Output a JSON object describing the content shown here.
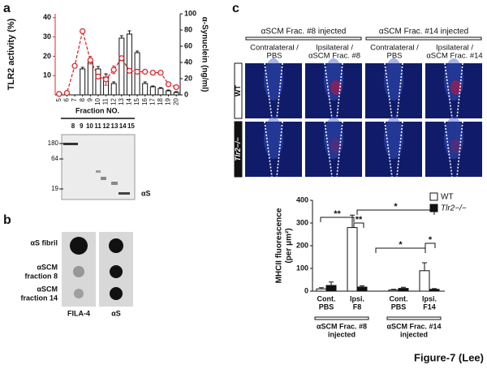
{
  "figure_label": "Figure-7 (Lee)",
  "panel_labels": [
    "a",
    "b",
    "c"
  ],
  "chart_data": [
    {
      "type": "bar",
      "y_label": "TLR2 activity (%)",
      "y2_label": "α-Synuclein (ng/ml)",
      "categories": [
        "5",
        "6",
        "7",
        "8",
        "9",
        "10",
        "11",
        "12",
        "13",
        "14",
        "15",
        "16",
        "17",
        "18",
        "19",
        "20"
      ],
      "ylim": [
        0,
        42
      ],
      "yticks": [
        10,
        20,
        30,
        40
      ],
      "y2lim": [
        0,
        100
      ],
      "y2ticks": [
        0,
        20,
        40,
        60,
        80,
        100
      ],
      "y_color": "#e0282e",
      "series": [
        {
          "type": "bar",
          "axis": "y2",
          "color": "#ffffff",
          "values": [
            0,
            0,
            0,
            32,
            40,
            32,
            22,
            14,
            70,
            75,
            52,
            14,
            10,
            8,
            5,
            3
          ],
          "errors": [
            0,
            0,
            0,
            2,
            4,
            3,
            3,
            2,
            3,
            4,
            2,
            2,
            1,
            1,
            1,
            1
          ]
        },
        {
          "type": "line",
          "color": "#e0282e",
          "values": [
            0.5,
            1,
            15,
            33,
            18,
            9.5,
            8,
            13,
            19,
            12.5,
            12,
            12,
            11.5,
            11.5,
            5.5,
            4
          ],
          "errors": [
            0,
            0,
            0,
            1,
            2,
            1,
            3,
            2,
            1,
            1,
            1,
            1,
            1,
            1,
            1,
            1
          ]
        }
      ]
    },
    {
      "type": "bar",
      "y_label": "MHCII fluorescence",
      "y_label_unit": "(per μm²)",
      "categories": [
        [
          "Cont.",
          "PBS"
        ],
        [
          "Ipsi.",
          "F8"
        ],
        [
          "Cont.",
          "PBS"
        ],
        [
          "Ipsi.",
          "F14"
        ]
      ],
      "ylim": [
        0,
        400
      ],
      "yticks": [
        0,
        100,
        200,
        300,
        400
      ],
      "legend": "upper-right",
      "series": [
        {
          "name": "WT",
          "color": "#ffffff",
          "values": [
            10,
            280,
            5,
            90
          ],
          "errors": [
            5,
            55,
            3,
            35
          ]
        },
        {
          "name": "Tlr2−/−",
          "color": "#111111",
          "values": [
            25,
            18,
            12,
            8
          ],
          "errors": [
            15,
            5,
            5,
            3
          ]
        }
      ],
      "groups": [
        [
          "αSCM Frac. #8",
          "injected"
        ],
        [
          "αSCM Frac. #14",
          "injected"
        ]
      ],
      "annotations": [
        "**",
        "**",
        "*",
        "*",
        "*"
      ]
    }
  ],
  "blot": {
    "fraction_label": "Fraction NO.",
    "lanes": [
      "8",
      "9",
      "10",
      "11",
      "12",
      "13",
      "14",
      "15"
    ],
    "markers": [
      180,
      64,
      19
    ],
    "band_label": "αS"
  },
  "dot_blot": {
    "rows": [
      [
        "αS fibril"
      ],
      [
        "αSCM",
        "fraction 8"
      ],
      [
        "αSCM",
        "fraction 14"
      ]
    ],
    "columns": [
      "FILA-4",
      "αS"
    ]
  },
  "micrographs": {
    "groups": [
      "αSCM Frac. #8 injected",
      "αSCM Frac. #14 injected"
    ],
    "columns": [
      [
        "Contralateral /",
        "PBS"
      ],
      [
        "Ipsilateral /",
        "αSCM Frac. #8"
      ],
      [
        "Contralateral /",
        "PBS"
      ],
      [
        "Ipsilateral /",
        "αSCM Frac. #14"
      ]
    ],
    "rows": [
      "WT",
      "Tlr2−/−"
    ]
  }
}
